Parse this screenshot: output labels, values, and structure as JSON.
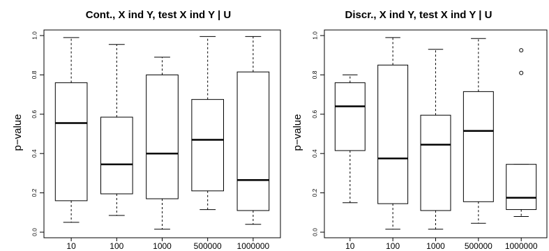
{
  "chart_data": [
    {
      "type": "boxplot",
      "title": "Cont., X ind Y, test X ind Y | U",
      "ylabel": "p−value",
      "xlabel": "",
      "categories": [
        "10",
        "100",
        "1000",
        "500000",
        "1000000"
      ],
      "ylim": [
        0,
        1
      ],
      "yticks": [
        "0.0",
        "0.2",
        "0.4",
        "0.6",
        "0.8",
        "1.0"
      ],
      "boxes": [
        {
          "category": "10",
          "whisker_low": 0.05,
          "q1": 0.16,
          "median": 0.555,
          "q3": 0.76,
          "whisker_high": 0.99,
          "outliers": []
        },
        {
          "category": "100",
          "whisker_low": 0.085,
          "q1": 0.195,
          "median": 0.345,
          "q3": 0.585,
          "whisker_high": 0.955,
          "outliers": []
        },
        {
          "category": "1000",
          "whisker_low": 0.015,
          "q1": 0.17,
          "median": 0.4,
          "q3": 0.8,
          "whisker_high": 0.89,
          "outliers": []
        },
        {
          "category": "500000",
          "whisker_low": 0.115,
          "q1": 0.21,
          "median": 0.47,
          "q3": 0.675,
          "whisker_high": 0.995,
          "outliers": []
        },
        {
          "category": "1000000",
          "whisker_low": 0.04,
          "q1": 0.11,
          "median": 0.265,
          "q3": 0.815,
          "whisker_high": 0.995,
          "outliers": []
        }
      ]
    },
    {
      "type": "boxplot",
      "title": "Discr., X ind Y, test X ind Y | U",
      "ylabel": "p−value",
      "xlabel": "",
      "categories": [
        "10",
        "100",
        "1000",
        "500000",
        "1000000"
      ],
      "ylim": [
        0,
        1
      ],
      "yticks": [
        "0.0",
        "0.2",
        "0.4",
        "0.6",
        "0.8",
        "1.0"
      ],
      "boxes": [
        {
          "category": "10",
          "whisker_low": 0.15,
          "q1": 0.415,
          "median": 0.64,
          "q3": 0.76,
          "whisker_high": 0.8,
          "outliers": []
        },
        {
          "category": "100",
          "whisker_low": 0.015,
          "q1": 0.145,
          "median": 0.375,
          "q3": 0.85,
          "whisker_high": 0.99,
          "outliers": []
        },
        {
          "category": "1000",
          "whisker_low": 0.015,
          "q1": 0.11,
          "median": 0.445,
          "q3": 0.595,
          "whisker_high": 0.93,
          "outliers": []
        },
        {
          "category": "500000",
          "whisker_low": 0.045,
          "q1": 0.155,
          "median": 0.515,
          "q3": 0.715,
          "whisker_high": 0.985,
          "outliers": []
        },
        {
          "category": "1000000",
          "whisker_low": 0.08,
          "q1": 0.115,
          "median": 0.175,
          "q3": 0.345,
          "whisker_high": 0.345,
          "outliers": [
            0.81,
            0.925
          ]
        }
      ]
    }
  ]
}
